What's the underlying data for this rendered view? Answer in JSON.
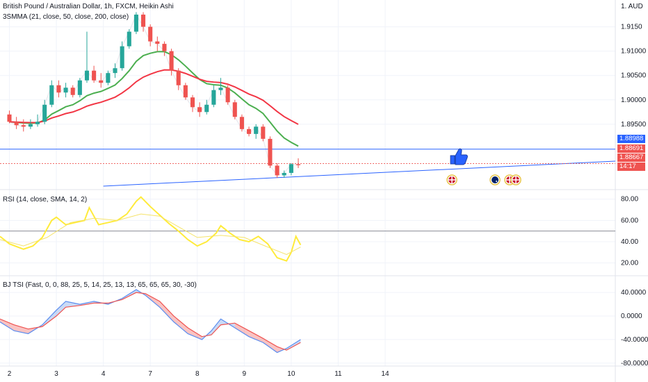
{
  "header": {
    "title": "British Pound / Australian Dollar, 1h, FXCM, Heikin Ashi",
    "indicator": "3SMMA (21, close, 50, close, 200, close)",
    "currency": "1. AUD"
  },
  "price_tags": [
    {
      "value": "1.88988",
      "color": "#2962ff"
    },
    {
      "value": "1.88691",
      "color": "#ef5350"
    },
    {
      "value": "1.88667",
      "color": "#ef5350"
    },
    {
      "value": "14:17",
      "color": "#ef5350"
    }
  ],
  "colors": {
    "up": "#26a69a",
    "down": "#ef5350",
    "sma21": "#ffffff",
    "sma50": "#4caf50",
    "sma200": "#f23645",
    "rsi": "#ffeb3b",
    "rsi_ma": "#f5e36a",
    "trend": "#2962ff",
    "grid": "#f0f3fa"
  },
  "icons": [
    "thumbs-up-icon",
    "uk-flag-icon",
    "australia-flag-icon"
  ],
  "chart_data": [
    {
      "type": "candlestick",
      "title": "British Pound / Australian Dollar, 1h, FXCM, Heikin Ashi",
      "yticks": [
        "1.9150",
        "1.91000",
        "1.90500",
        "1.90000",
        "1.89500",
        "1.88988",
        "1.88691",
        "1.88667"
      ],
      "ylim": [
        1.882,
        1.9205
      ],
      "xticks": [
        "2",
        "3",
        "4",
        "7",
        "8",
        "9",
        "10",
        "11",
        "14"
      ],
      "x_range": [
        1.8,
        14.9
      ],
      "candles": [
        {
          "x": 2.0,
          "o": 1.897,
          "h": 1.8978,
          "l": 1.8952,
          "c": 1.8955
        },
        {
          "x": 2.15,
          "o": 1.8955,
          "h": 1.8965,
          "l": 1.894,
          "c": 1.8948
        },
        {
          "x": 2.3,
          "o": 1.8948,
          "h": 1.896,
          "l": 1.8935,
          "c": 1.8945
        },
        {
          "x": 2.45,
          "o": 1.8945,
          "h": 1.896,
          "l": 1.894,
          "c": 1.895
        },
        {
          "x": 2.6,
          "o": 1.895,
          "h": 1.897,
          "l": 1.8945,
          "c": 1.8955
        },
        {
          "x": 2.75,
          "o": 1.8955,
          "h": 1.9,
          "l": 1.895,
          "c": 1.899
        },
        {
          "x": 2.9,
          "o": 1.899,
          "h": 1.904,
          "l": 1.8985,
          "c": 1.903
        },
        {
          "x": 3.05,
          "o": 1.903,
          "h": 1.904,
          "l": 1.9005,
          "c": 1.9015
        },
        {
          "x": 3.2,
          "o": 1.9015,
          "h": 1.9035,
          "l": 1.9005,
          "c": 1.9025
        },
        {
          "x": 3.35,
          "o": 1.9025,
          "h": 1.903,
          "l": 1.9005,
          "c": 1.901
        },
        {
          "x": 3.5,
          "o": 1.901,
          "h": 1.9045,
          "l": 1.9005,
          "c": 1.904
        },
        {
          "x": 3.65,
          "o": 1.904,
          "h": 1.914,
          "l": 1.9035,
          "c": 1.906
        },
        {
          "x": 3.8,
          "o": 1.906,
          "h": 1.907,
          "l": 1.9035,
          "c": 1.904
        },
        {
          "x": 3.95,
          "o": 1.904,
          "h": 1.9055,
          "l": 1.9025,
          "c": 1.9035
        },
        {
          "x": 4.1,
          "o": 1.9035,
          "h": 1.906,
          "l": 1.903,
          "c": 1.9055
        },
        {
          "x": 4.25,
          "o": 1.9055,
          "h": 1.9075,
          "l": 1.9045,
          "c": 1.9065
        },
        {
          "x": 4.4,
          "o": 1.9065,
          "h": 1.912,
          "l": 1.906,
          "c": 1.911
        },
        {
          "x": 4.55,
          "o": 1.911,
          "h": 1.9145,
          "l": 1.9105,
          "c": 1.914
        },
        {
          "x": 4.7,
          "o": 1.914,
          "h": 1.918,
          "l": 1.9135,
          "c": 1.9175
        },
        {
          "x": 4.85,
          "o": 1.9175,
          "h": 1.918,
          "l": 1.914,
          "c": 1.915
        },
        {
          "x": 5.0,
          "o": 1.915,
          "h": 1.9155,
          "l": 1.911,
          "c": 1.912
        },
        {
          "x": 5.15,
          "o": 1.912,
          "h": 1.913,
          "l": 1.91,
          "c": 1.9115
        },
        {
          "x": 5.3,
          "o": 1.9115,
          "h": 1.912,
          "l": 1.909,
          "c": 1.91
        },
        {
          "x": 5.45,
          "o": 1.91,
          "h": 1.9105,
          "l": 1.905,
          "c": 1.906
        },
        {
          "x": 5.6,
          "o": 1.906,
          "h": 1.9065,
          "l": 1.902,
          "c": 1.903
        },
        {
          "x": 5.75,
          "o": 1.903,
          "h": 1.9035,
          "l": 1.9,
          "c": 1.9005
        },
        {
          "x": 5.9,
          "o": 1.9005,
          "h": 1.901,
          "l": 1.8975,
          "c": 1.8985
        },
        {
          "x": 6.05,
          "o": 1.8985,
          "h": 1.8995,
          "l": 1.8965,
          "c": 1.8975
        },
        {
          "x": 6.2,
          "o": 1.8975,
          "h": 1.9,
          "l": 1.897,
          "c": 1.899
        },
        {
          "x": 6.35,
          "o": 1.899,
          "h": 1.903,
          "l": 1.8985,
          "c": 1.902
        },
        {
          "x": 6.5,
          "o": 1.902,
          "h": 1.9045,
          "l": 1.901,
          "c": 1.9025
        },
        {
          "x": 6.65,
          "o": 1.9025,
          "h": 1.903,
          "l": 1.899,
          "c": 1.8995
        },
        {
          "x": 6.8,
          "o": 1.8995,
          "h": 1.9,
          "l": 1.896,
          "c": 1.8965
        },
        {
          "x": 6.95,
          "o": 1.8965,
          "h": 1.897,
          "l": 1.8935,
          "c": 1.894
        },
        {
          "x": 7.1,
          "o": 1.894,
          "h": 1.8945,
          "l": 1.8925,
          "c": 1.893
        },
        {
          "x": 7.25,
          "o": 1.893,
          "h": 1.895,
          "l": 1.892,
          "c": 1.8945
        },
        {
          "x": 7.4,
          "o": 1.8945,
          "h": 1.895,
          "l": 1.8915,
          "c": 1.892
        },
        {
          "x": 7.55,
          "o": 1.892,
          "h": 1.8925,
          "l": 1.886,
          "c": 1.8865
        },
        {
          "x": 7.7,
          "o": 1.8865,
          "h": 1.887,
          "l": 1.884,
          "c": 1.8845
        },
        {
          "x": 7.85,
          "o": 1.8845,
          "h": 1.8855,
          "l": 1.884,
          "c": 1.885
        },
        {
          "x": 8.0,
          "o": 1.885,
          "h": 1.887,
          "l": 1.8845,
          "c": 1.8868
        },
        {
          "x": 8.15,
          "o": 1.8868,
          "h": 1.888,
          "l": 1.886,
          "c": 1.8866
        }
      ]
    },
    {
      "type": "line",
      "title": "RSI (14, close, SMA, 14, 2)",
      "yticks": [
        "80.00",
        "60.00",
        "40.00",
        "20.00"
      ],
      "ylim": [
        10,
        87
      ],
      "series": [
        {
          "values": [
            [
              1.8,
              45
            ],
            [
              2.0,
              38
            ],
            [
              2.3,
              33
            ],
            [
              2.5,
              36
            ],
            [
              2.7,
              44
            ],
            [
              2.9,
              60
            ],
            [
              3.0,
              63
            ],
            [
              3.2,
              56
            ],
            [
              3.4,
              58
            ],
            [
              3.6,
              60
            ],
            [
              3.7,
              72
            ],
            [
              3.9,
              56
            ],
            [
              4.1,
              58
            ],
            [
              4.3,
              60
            ],
            [
              4.5,
              66
            ],
            [
              4.7,
              78
            ],
            [
              4.8,
              82
            ],
            [
              5.0,
              73
            ],
            [
              5.2,
              65
            ],
            [
              5.4,
              57
            ],
            [
              5.6,
              50
            ],
            [
              5.8,
              42
            ],
            [
              6.0,
              36
            ],
            [
              6.2,
              40
            ],
            [
              6.4,
              48
            ],
            [
              6.5,
              55
            ],
            [
              6.7,
              48
            ],
            [
              6.9,
              42
            ],
            [
              7.1,
              40
            ],
            [
              7.3,
              45
            ],
            [
              7.5,
              38
            ],
            [
              7.7,
              25
            ],
            [
              7.9,
              22
            ],
            [
              8.0,
              30
            ],
            [
              8.1,
              45
            ],
            [
              8.2,
              37
            ]
          ]
        },
        {
          "values": [
            [
              1.8,
              42
            ],
            [
              2.3,
              36
            ],
            [
              2.8,
              44
            ],
            [
              3.3,
              58
            ],
            [
              3.8,
              62
            ],
            [
              4.3,
              60
            ],
            [
              4.8,
              66
            ],
            [
              5.2,
              64
            ],
            [
              5.6,
              54
            ],
            [
              6.0,
              44
            ],
            [
              6.5,
              46
            ],
            [
              7.0,
              44
            ],
            [
              7.5,
              35
            ],
            [
              7.9,
              28
            ],
            [
              8.2,
              35
            ]
          ]
        }
      ]
    },
    {
      "type": "area",
      "title": "BJ TSI (Fast, 0, 0, 88, 25, 5, 14, 25, 13, 13, 65, 65, 65, 30, -30)",
      "yticks": [
        "40.0000",
        "0.0000",
        "-40.0000",
        "-80.0000"
      ],
      "ylim": [
        -85,
        65
      ],
      "series": [
        {
          "values": [
            [
              1.8,
              -10
            ],
            [
              2.1,
              -25
            ],
            [
              2.4,
              -30
            ],
            [
              2.7,
              -15
            ],
            [
              3.0,
              10
            ],
            [
              3.2,
              25
            ],
            [
              3.5,
              20
            ],
            [
              3.8,
              25
            ],
            [
              4.1,
              20
            ],
            [
              4.4,
              30
            ],
            [
              4.7,
              45
            ],
            [
              4.9,
              35
            ],
            [
              5.2,
              15
            ],
            [
              5.5,
              -10
            ],
            [
              5.8,
              -30
            ],
            [
              6.1,
              -40
            ],
            [
              6.3,
              -25
            ],
            [
              6.5,
              -5
            ],
            [
              6.8,
              -20
            ],
            [
              7.1,
              -35
            ],
            [
              7.4,
              -45
            ],
            [
              7.7,
              -62
            ],
            [
              7.9,
              -55
            ],
            [
              8.2,
              -40
            ]
          ]
        },
        {
          "values": [
            [
              1.8,
              -5
            ],
            [
              2.1,
              -15
            ],
            [
              2.4,
              -22
            ],
            [
              2.7,
              -18
            ],
            [
              3.0,
              0
            ],
            [
              3.2,
              15
            ],
            [
              3.5,
              18
            ],
            [
              3.8,
              22
            ],
            [
              4.1,
              22
            ],
            [
              4.4,
              28
            ],
            [
              4.7,
              40
            ],
            [
              4.9,
              38
            ],
            [
              5.2,
              25
            ],
            [
              5.5,
              0
            ],
            [
              5.8,
              -20
            ],
            [
              6.1,
              -35
            ],
            [
              6.3,
              -32
            ],
            [
              6.5,
              -15
            ],
            [
              6.8,
              -12
            ],
            [
              7.1,
              -25
            ],
            [
              7.4,
              -38
            ],
            [
              7.7,
              -52
            ],
            [
              7.9,
              -58
            ],
            [
              8.2,
              -45
            ]
          ]
        }
      ]
    }
  ]
}
